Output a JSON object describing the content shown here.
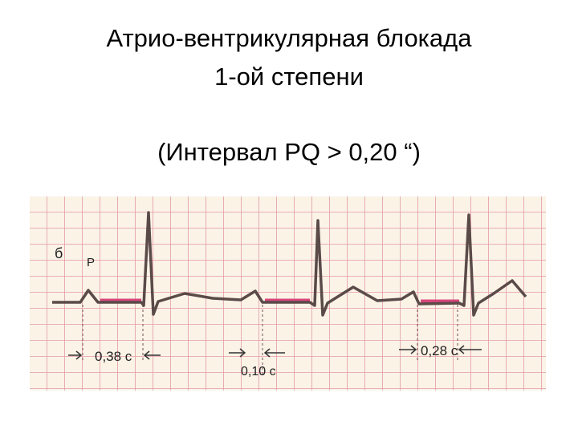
{
  "header": {
    "title_lines": [
      "Атрио-вентрикулярная блокада",
      "1-ой степени"
    ],
    "subtitle": "(Интервал PQ > 0,20 “)"
  },
  "ecg": {
    "panel_label": "б",
    "wave_label": "P",
    "intervals": [
      "0,38 с",
      "0,10 с",
      "0,28 с"
    ]
  }
}
